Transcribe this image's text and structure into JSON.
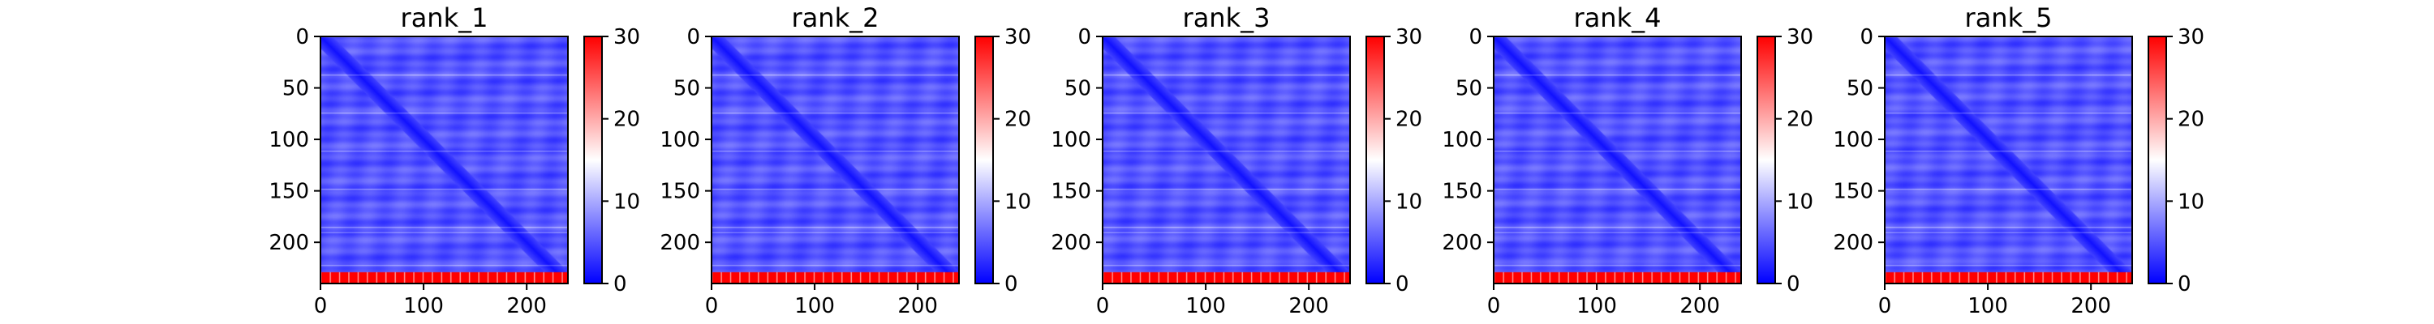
{
  "chart_data": {
    "type": "heatmap",
    "panels": [
      {
        "title": "rank_1"
      },
      {
        "title": "rank_2"
      },
      {
        "title": "rank_3"
      },
      {
        "title": "rank_4"
      },
      {
        "title": "rank_5"
      }
    ],
    "matrix_size": 240,
    "x_ticks": [
      0,
      100,
      200
    ],
    "y_ticks": [
      0,
      50,
      100,
      150,
      200
    ],
    "colorbar": {
      "min": 0,
      "max": 30,
      "ticks": [
        0,
        10,
        20,
        30
      ],
      "colormap": "bwr",
      "colors": [
        "#0000ff",
        "#ffffff",
        "#ff0000"
      ]
    },
    "pattern": {
      "background_value": 5,
      "diagonal_value": 1,
      "bottom_rows_start": 229,
      "bottom_rows_value": 30
    }
  }
}
